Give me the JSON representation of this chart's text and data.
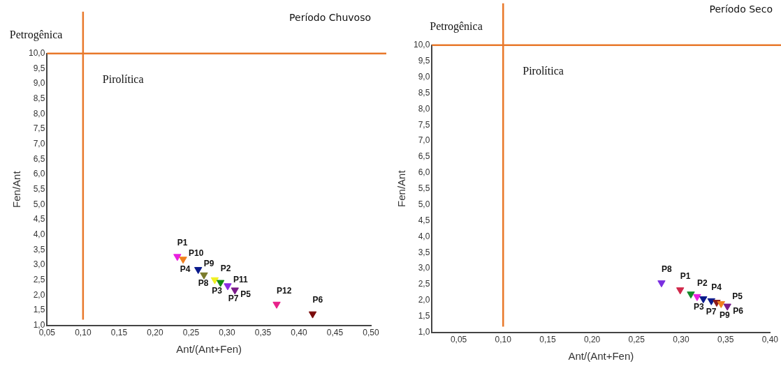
{
  "chart_data": [
    {
      "type": "scatter",
      "title": "Período Chuvoso",
      "xlabel": "Ant/(Ant+Fen)",
      "ylabel": "Fen/Ant",
      "marker": "triangle",
      "grid": false,
      "legend": false,
      "x": [
        0.231,
        0.239,
        0.26,
        0.268,
        0.283,
        0.291,
        0.301,
        0.311,
        0.369,
        0.419
      ],
      "values": [
        3.28,
        3.19,
        2.85,
        2.67,
        2.51,
        2.42,
        2.31,
        2.17,
        1.7,
        1.38
      ],
      "colors": [
        "#e81ee0",
        "#f07f1e",
        "#0a1a8c",
        "#7a7a2a",
        "#f0f020",
        "#128a12",
        "#8a2be2",
        "#7a1a8a",
        "#e8208a",
        "#7a0a0a"
      ],
      "xlim": [
        0.05,
        0.5
      ],
      "xticks": [
        {
          "value": 0.05,
          "label": "0,05"
        },
        {
          "value": 0.1,
          "label": "0,10"
        },
        {
          "value": 0.15,
          "label": "0,15"
        },
        {
          "value": 0.2,
          "label": "0,20"
        },
        {
          "value": 0.25,
          "label": "0,25"
        },
        {
          "value": 0.3,
          "label": "0,30"
        },
        {
          "value": 0.35,
          "label": "0,35"
        },
        {
          "value": 0.4,
          "label": "0,40"
        },
        {
          "value": 0.45,
          "label": "0,45"
        },
        {
          "value": 0.5,
          "label": "0,50"
        }
      ],
      "ylim": [
        1,
        10
      ],
      "yticks": [
        {
          "value": 1,
          "label": "1,0"
        },
        {
          "value": 1.5,
          "label": "1,5"
        },
        {
          "value": 2,
          "label": "2,0"
        },
        {
          "value": 2.5,
          "label": "2,5"
        },
        {
          "value": 3,
          "label": "3,0"
        },
        {
          "value": 3.5,
          "label": "3,5"
        },
        {
          "value": 4,
          "label": "4,0"
        },
        {
          "value": 4.5,
          "label": "4,5"
        },
        {
          "value": 5,
          "label": "5,0"
        },
        {
          "value": 5.5,
          "label": "5,5"
        },
        {
          "value": 6,
          "label": "6,0"
        },
        {
          "value": 6.5,
          "label": "6,5"
        },
        {
          "value": 7,
          "label": "7,0"
        },
        {
          "value": 7.5,
          "label": "7,5"
        },
        {
          "value": 8,
          "label": "8,0"
        },
        {
          "value": 8.5,
          "label": "8,5"
        },
        {
          "value": 9,
          "label": "9,0"
        },
        {
          "value": 9.5,
          "label": "9,5"
        },
        {
          "value": 10,
          "label": "10,0"
        }
      ],
      "ref_lines": [
        {
          "axis": "x",
          "value": 0.1,
          "color": "#e8782a"
        },
        {
          "axis": "y",
          "value": 10,
          "color": "#e8782a"
        }
      ],
      "annotations": [
        "Petrogênica",
        "Pirolítica",
        {
          "text": "P1",
          "x": 0.231,
          "y": 3.28
        },
        {
          "text": "P4",
          "x": 0.231,
          "y": 3.28
        },
        {
          "text": "P10",
          "x": 0.239,
          "y": 3.19
        },
        {
          "text": "P8",
          "x": 0.26,
          "y": 2.85
        },
        {
          "text": "P9",
          "x": 0.26,
          "y": 2.85
        },
        {
          "text": "P3",
          "x": 0.268,
          "y": 2.67
        },
        {
          "text": "P2",
          "x": 0.291,
          "y": 2.42
        },
        {
          "text": "P7",
          "x": 0.291,
          "y": 2.42
        },
        {
          "text": "P11",
          "x": 0.301,
          "y": 2.31
        },
        {
          "text": "P5",
          "x": 0.311,
          "y": 2.17
        },
        {
          "text": "P12",
          "x": 0.369,
          "y": 1.7
        },
        {
          "text": "P6",
          "x": 0.419,
          "y": 1.38
        }
      ]
    },
    {
      "type": "scatter",
      "title": "Período Seco",
      "xlabel": "Ant/(Ant+Fen)",
      "ylabel": "Fen/Ant",
      "marker": "triangle",
      "grid": false,
      "legend": false,
      "x": [
        0.278,
        0.299,
        0.311,
        0.318,
        0.325,
        0.334,
        0.34,
        0.345,
        0.352
      ],
      "values": [
        2.55,
        2.33,
        2.2,
        2.12,
        2.05,
        1.99,
        1.94,
        1.9,
        1.82
      ],
      "colors": [
        "#7a2ee0",
        "#d0284a",
        "#128a2a",
        "#e81ee0",
        "#0a1a8c",
        "#0a1a8c",
        "#8a1a1a",
        "#f07f1e",
        "#7a1a8a"
      ],
      "xlim": [
        0.02,
        0.4
      ],
      "xticks": [
        {
          "value": 0.05,
          "label": "0,05"
        },
        {
          "value": 0.1,
          "label": "0,10"
        },
        {
          "value": 0.15,
          "label": "0,15"
        },
        {
          "value": 0.2,
          "label": "0,20"
        },
        {
          "value": 0.25,
          "label": "0,25"
        },
        {
          "value": 0.3,
          "label": "0,30"
        },
        {
          "value": 0.35,
          "label": "0,35"
        },
        {
          "value": 0.4,
          "label": "0,40"
        }
      ],
      "ylim": [
        1,
        10
      ],
      "yticks": [
        {
          "value": 1,
          "label": "1,0"
        },
        {
          "value": 1.5,
          "label": "1,5"
        },
        {
          "value": 2,
          "label": "2,0"
        },
        {
          "value": 2.5,
          "label": "2,5"
        },
        {
          "value": 3,
          "label": "3,0"
        },
        {
          "value": 3.5,
          "label": "3,5"
        },
        {
          "value": 4,
          "label": "4,0"
        },
        {
          "value": 4.5,
          "label": "4,5"
        },
        {
          "value": 5,
          "label": "5,0"
        },
        {
          "value": 5.5,
          "label": "5,5"
        },
        {
          "value": 6,
          "label": "6,0"
        },
        {
          "value": 6.5,
          "label": "6,5"
        },
        {
          "value": 7,
          "label": "7,0"
        },
        {
          "value": 7.5,
          "label": "7,5"
        },
        {
          "value": 8,
          "label": "8,0"
        },
        {
          "value": 8.5,
          "label": "8,5"
        },
        {
          "value": 9,
          "label": "9,0"
        },
        {
          "value": 9.5,
          "label": "9,5"
        },
        {
          "value": 10,
          "label": "10,0"
        }
      ],
      "ref_lines": [
        {
          "axis": "x",
          "value": 0.1,
          "color": "#e8782a"
        },
        {
          "axis": "y",
          "value": 10,
          "color": "#e8782a"
        }
      ],
      "annotations": [
        "Petrogênica",
        "Pirolítica",
        {
          "text": "P8",
          "x": 0.278,
          "y": 2.55
        },
        {
          "text": "P1",
          "x": 0.299,
          "y": 2.33
        },
        {
          "text": "P3",
          "x": 0.311,
          "y": 2.2
        },
        {
          "text": "P2",
          "x": 0.318,
          "y": 2.12
        },
        {
          "text": "P7",
          "x": 0.325,
          "y": 2.05
        },
        {
          "text": "P4",
          "x": 0.334,
          "y": 1.99
        },
        {
          "text": "P9",
          "x": 0.34,
          "y": 1.94
        },
        {
          "text": "P5",
          "x": 0.345,
          "y": 1.9
        },
        {
          "text": "P6",
          "x": 0.352,
          "y": 1.82
        }
      ]
    }
  ]
}
